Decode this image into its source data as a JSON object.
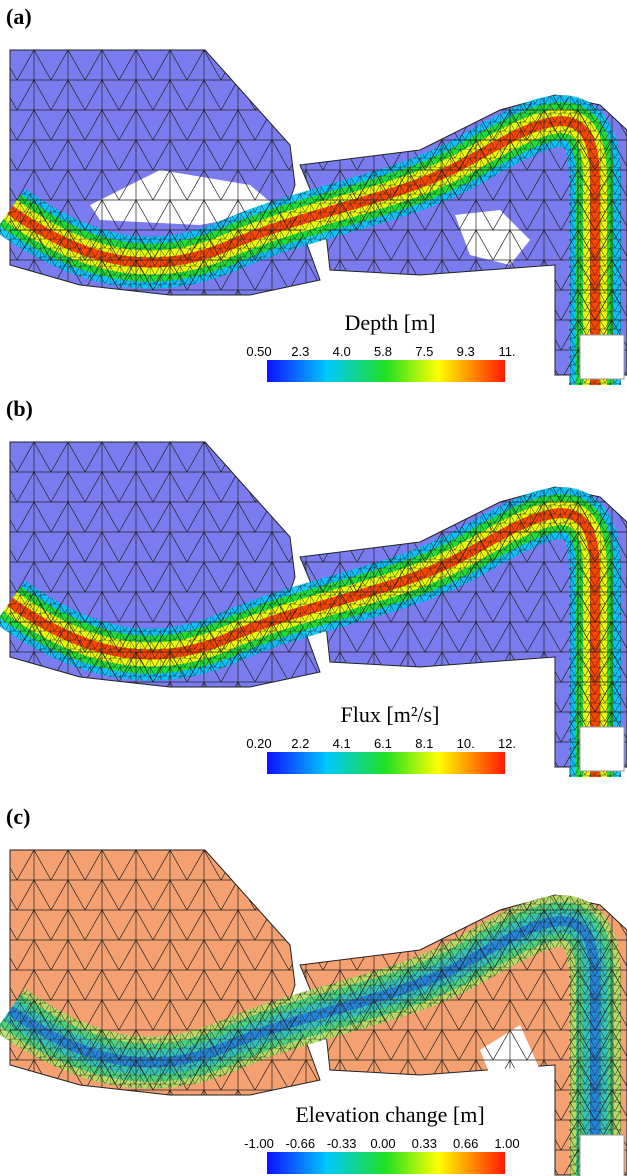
{
  "panels": [
    {
      "label": "(a)",
      "colorbar": {
        "title": "Depth [m]",
        "ticks": [
          "0.50",
          "2.3",
          "4.0",
          "5.8",
          "7.5",
          "9.3",
          "11."
        ]
      }
    },
    {
      "label": "(b)",
      "colorbar": {
        "title": "Flux [m²/s]",
        "ticks": [
          "0.20",
          "2.2",
          "4.1",
          "6.1",
          "8.1",
          "10.",
          "12."
        ]
      }
    },
    {
      "label": "(c)",
      "colorbar": {
        "title": "Elevation change [m]",
        "ticks": [
          "-1.00",
          "-0.66",
          "-0.33",
          "0.00",
          "0.33",
          "0.66",
          "1.00"
        ]
      }
    }
  ]
}
